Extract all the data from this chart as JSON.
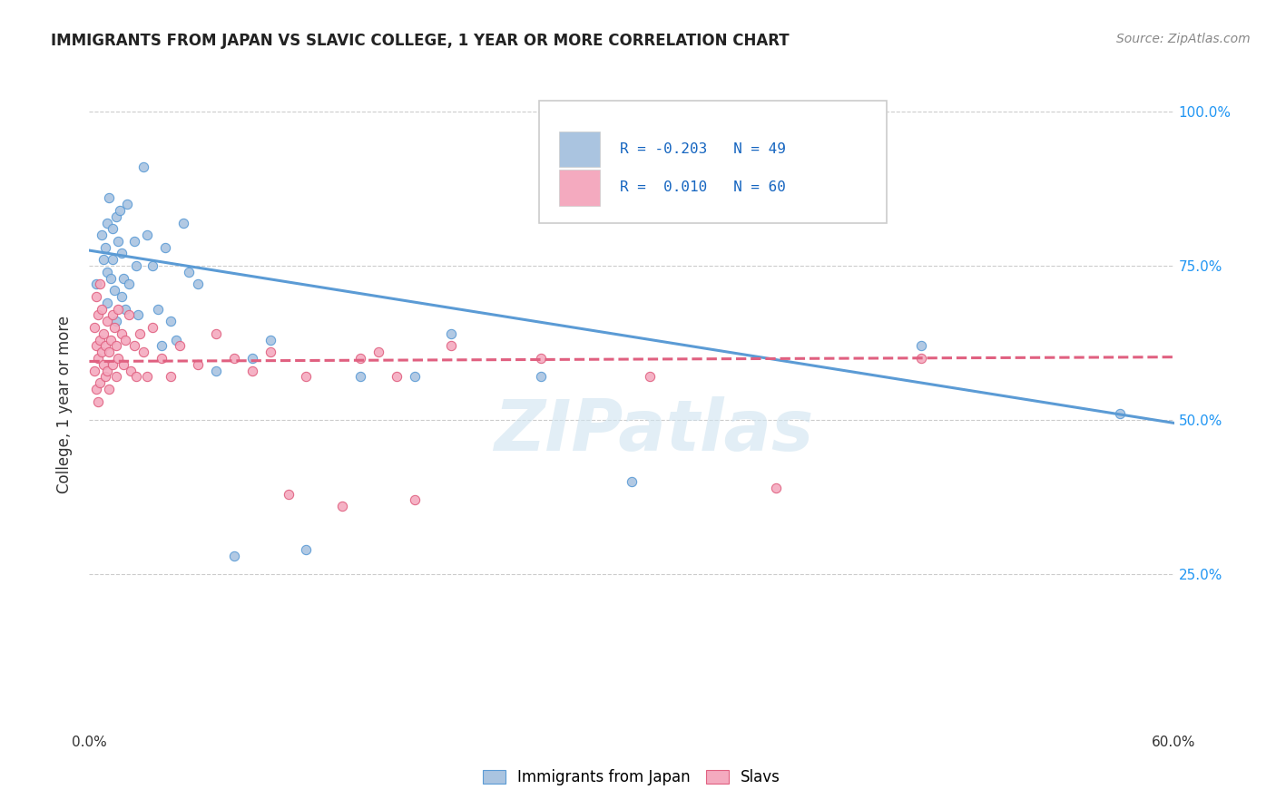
{
  "title": "IMMIGRANTS FROM JAPAN VS SLAVIC COLLEGE, 1 YEAR OR MORE CORRELATION CHART",
  "source": "Source: ZipAtlas.com",
  "ylabel": "College, 1 year or more",
  "xlim": [
    0.0,
    0.6
  ],
  "ylim": [
    0.0,
    1.05
  ],
  "legend_blue_label": "Immigrants from Japan",
  "legend_pink_label": "Slavs",
  "blue_color": "#aac4e0",
  "pink_color": "#f4aabf",
  "blue_line_color": "#5b9bd5",
  "pink_line_color": "#e06080",
  "watermark": "ZIPatlas",
  "blue_scatter_x": [
    0.004,
    0.007,
    0.008,
    0.009,
    0.01,
    0.01,
    0.01,
    0.011,
    0.012,
    0.013,
    0.013,
    0.014,
    0.015,
    0.015,
    0.016,
    0.017,
    0.018,
    0.018,
    0.019,
    0.02,
    0.021,
    0.022,
    0.025,
    0.026,
    0.027,
    0.03,
    0.032,
    0.035,
    0.038,
    0.04,
    0.042,
    0.045,
    0.048,
    0.052,
    0.055,
    0.06,
    0.07,
    0.08,
    0.09,
    0.1,
    0.12,
    0.15,
    0.18,
    0.2,
    0.25,
    0.3,
    0.38,
    0.46,
    0.57
  ],
  "blue_scatter_y": [
    0.72,
    0.8,
    0.76,
    0.78,
    0.82,
    0.74,
    0.69,
    0.86,
    0.73,
    0.81,
    0.76,
    0.71,
    0.83,
    0.66,
    0.79,
    0.84,
    0.7,
    0.77,
    0.73,
    0.68,
    0.85,
    0.72,
    0.79,
    0.75,
    0.67,
    0.91,
    0.8,
    0.75,
    0.68,
    0.62,
    0.78,
    0.66,
    0.63,
    0.82,
    0.74,
    0.72,
    0.58,
    0.28,
    0.6,
    0.63,
    0.29,
    0.57,
    0.57,
    0.64,
    0.57,
    0.4,
    0.86,
    0.62,
    0.51
  ],
  "pink_scatter_x": [
    0.003,
    0.003,
    0.004,
    0.004,
    0.004,
    0.005,
    0.005,
    0.005,
    0.006,
    0.006,
    0.006,
    0.007,
    0.007,
    0.008,
    0.008,
    0.009,
    0.009,
    0.01,
    0.01,
    0.011,
    0.011,
    0.012,
    0.013,
    0.013,
    0.014,
    0.015,
    0.015,
    0.016,
    0.016,
    0.018,
    0.019,
    0.02,
    0.022,
    0.023,
    0.025,
    0.026,
    0.028,
    0.03,
    0.032,
    0.035,
    0.04,
    0.045,
    0.05,
    0.06,
    0.07,
    0.08,
    0.09,
    0.1,
    0.11,
    0.12,
    0.14,
    0.15,
    0.16,
    0.17,
    0.18,
    0.2,
    0.25,
    0.31,
    0.38,
    0.46
  ],
  "pink_scatter_y": [
    0.65,
    0.58,
    0.7,
    0.62,
    0.55,
    0.67,
    0.6,
    0.53,
    0.72,
    0.63,
    0.56,
    0.68,
    0.61,
    0.59,
    0.64,
    0.57,
    0.62,
    0.66,
    0.58,
    0.61,
    0.55,
    0.63,
    0.67,
    0.59,
    0.65,
    0.62,
    0.57,
    0.6,
    0.68,
    0.64,
    0.59,
    0.63,
    0.67,
    0.58,
    0.62,
    0.57,
    0.64,
    0.61,
    0.57,
    0.65,
    0.6,
    0.57,
    0.62,
    0.59,
    0.64,
    0.6,
    0.58,
    0.61,
    0.38,
    0.57,
    0.36,
    0.6,
    0.61,
    0.57,
    0.37,
    0.62,
    0.6,
    0.57,
    0.39,
    0.6
  ],
  "blue_trendline_x": [
    0.0,
    0.6
  ],
  "blue_trendline_y": [
    0.775,
    0.495
  ],
  "pink_trendline_x": [
    0.0,
    0.6
  ],
  "pink_trendline_y": [
    0.595,
    0.602
  ],
  "right_yticks": [
    0.25,
    0.5,
    0.75,
    1.0
  ],
  "right_ytick_labels": [
    "25.0%",
    "50.0%",
    "75.0%",
    "100.0%"
  ],
  "grid_yticks": [
    0.25,
    0.5,
    0.75,
    1.0
  ]
}
